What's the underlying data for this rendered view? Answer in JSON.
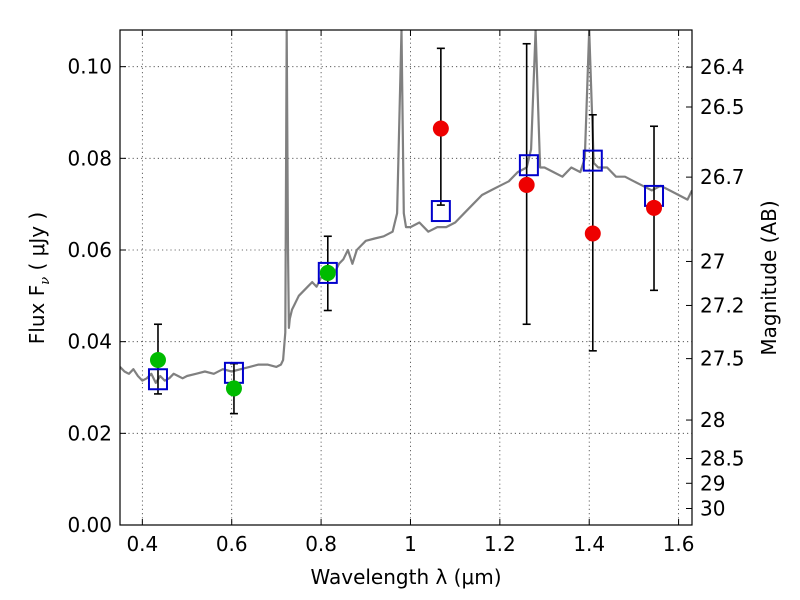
{
  "chart_data": {
    "type": "scatter",
    "xlabel": "Wavelength  λ (μm)",
    "ylabel": "Flux  F",
    "ylabel_subscript": "ν",
    "ylabel_unit": "  ( μJy )",
    "ylabel_right": "Magnitude (AB)",
    "xlim": [
      0.35,
      1.63
    ],
    "ylim": [
      0.0,
      0.108
    ],
    "grid": true,
    "x_ticks": [
      {
        "value": 0.4,
        "label": "0.4"
      },
      {
        "value": 0.6,
        "label": "0.6"
      },
      {
        "value": 0.8,
        "label": "0.8"
      },
      {
        "value": 1.0,
        "label": "1"
      },
      {
        "value": 1.2,
        "label": "1.2"
      },
      {
        "value": 1.4,
        "label": "1.4"
      },
      {
        "value": 1.6,
        "label": "1.6"
      }
    ],
    "y_ticks": [
      {
        "value": 0.0,
        "label": "0.00"
      },
      {
        "value": 0.02,
        "label": "0.02"
      },
      {
        "value": 0.04,
        "label": "0.04"
      },
      {
        "value": 0.06,
        "label": "0.06"
      },
      {
        "value": 0.08,
        "label": "0.08"
      },
      {
        "value": 0.1,
        "label": "0.10"
      }
    ],
    "right_ticks": [
      {
        "flux": 0.0999,
        "label": "26.4"
      },
      {
        "flux": 0.0912,
        "label": "26.5"
      },
      {
        "flux": 0.0759,
        "label": "26.7"
      },
      {
        "flux": 0.0575,
        "label": "27"
      },
      {
        "flux": 0.0479,
        "label": "27.2"
      },
      {
        "flux": 0.0363,
        "label": "27.5"
      },
      {
        "flux": 0.0229,
        "label": "28"
      },
      {
        "flux": 0.0145,
        "label": "28.5"
      },
      {
        "flux": 0.0091,
        "label": "29"
      },
      {
        "flux": 0.0036,
        "label": "30"
      }
    ],
    "series": [
      {
        "kind": "line",
        "color": "#808080",
        "x": [
          0.35,
          0.36,
          0.37,
          0.38,
          0.39,
          0.4,
          0.41,
          0.42,
          0.43,
          0.44,
          0.45,
          0.46,
          0.47,
          0.48,
          0.49,
          0.5,
          0.52,
          0.54,
          0.56,
          0.58,
          0.6,
          0.62,
          0.64,
          0.66,
          0.68,
          0.7,
          0.71,
          0.715,
          0.72,
          0.723,
          0.726,
          0.728,
          0.73,
          0.735,
          0.74,
          0.75,
          0.76,
          0.77,
          0.78,
          0.79,
          0.8,
          0.81,
          0.82,
          0.83,
          0.84,
          0.85,
          0.86,
          0.87,
          0.88,
          0.89,
          0.9,
          0.92,
          0.94,
          0.96,
          0.97,
          0.98,
          0.985,
          0.99,
          1.0,
          1.02,
          1.04,
          1.06,
          1.08,
          1.1,
          1.12,
          1.14,
          1.16,
          1.18,
          1.2,
          1.22,
          1.24,
          1.26,
          1.27,
          1.28,
          1.29,
          1.3,
          1.32,
          1.34,
          1.36,
          1.38,
          1.39,
          1.4,
          1.41,
          1.42,
          1.44,
          1.46,
          1.48,
          1.5,
          1.52,
          1.54,
          1.56,
          1.58,
          1.6,
          1.62,
          1.63
        ],
        "y": [
          0.0345,
          0.0335,
          0.033,
          0.034,
          0.0325,
          0.0315,
          0.032,
          0.033,
          0.031,
          0.0325,
          0.0315,
          0.032,
          0.033,
          0.0325,
          0.032,
          0.0325,
          0.033,
          0.0335,
          0.033,
          0.034,
          0.0335,
          0.034,
          0.0345,
          0.035,
          0.035,
          0.0345,
          0.035,
          0.036,
          0.042,
          0.11,
          0.06,
          0.043,
          0.045,
          0.047,
          0.048,
          0.05,
          0.051,
          0.052,
          0.053,
          0.052,
          0.054,
          0.055,
          0.056,
          0.055,
          0.057,
          0.058,
          0.06,
          0.057,
          0.06,
          0.061,
          0.062,
          0.0625,
          0.063,
          0.064,
          0.068,
          0.11,
          0.068,
          0.065,
          0.065,
          0.066,
          0.064,
          0.065,
          0.065,
          0.066,
          0.068,
          0.07,
          0.072,
          0.073,
          0.074,
          0.075,
          0.077,
          0.078,
          0.082,
          0.11,
          0.078,
          0.078,
          0.077,
          0.076,
          0.078,
          0.077,
          0.08,
          0.11,
          0.079,
          0.078,
          0.078,
          0.076,
          0.076,
          0.075,
          0.074,
          0.073,
          0.074,
          0.073,
          0.072,
          0.071,
          0.073
        ]
      },
      {
        "kind": "errorbar-points",
        "color": "#00bb00",
        "x": [
          0.435,
          0.605,
          0.815
        ],
        "y": [
          0.036,
          0.0298,
          0.055
        ],
        "yerr_low": [
          0.0286,
          0.0243,
          0.0468
        ],
        "yerr_high": [
          0.0438,
          0.0352,
          0.063
        ]
      },
      {
        "kind": "errorbar-points",
        "color": "#ee0000",
        "x": [
          1.068,
          1.26,
          1.408,
          1.545
        ],
        "y": [
          0.0865,
          0.0742,
          0.0636,
          0.0692
        ],
        "yerr_low": [
          0.0698,
          0.0438,
          0.038,
          0.0512
        ],
        "yerr_high": [
          0.104,
          0.105,
          0.0895,
          0.087
        ]
      },
      {
        "kind": "open-squares",
        "color": "#0000cc",
        "x": [
          0.435,
          0.605,
          0.815,
          1.068,
          1.265,
          1.408,
          1.545
        ],
        "y": [
          0.0318,
          0.0332,
          0.055,
          0.0685,
          0.0785,
          0.0795,
          0.0718
        ]
      }
    ]
  }
}
